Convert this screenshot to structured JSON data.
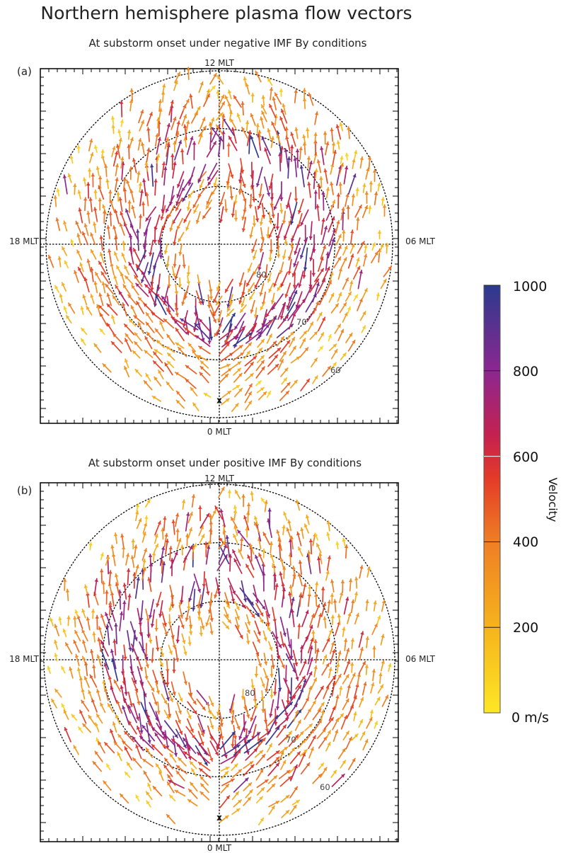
{
  "title": "Northern hemisphere plasma flow vectors",
  "colors": {
    "scale": [
      "#fde725",
      "#f8b61e",
      "#f39224",
      "#ea5a25",
      "#e22b2b",
      "#b3206a",
      "#7b2a9a",
      "#2c3d8f"
    ],
    "frame": "#000000",
    "grid": "#000000"
  },
  "chart_data": [
    {
      "type": "polar-vector",
      "panel_label": "(a)",
      "title": "At substorm onset under negative IMF By conditions",
      "mlt_labels": {
        "top": "12 MLT",
        "left": "18 MLT",
        "right": "06 MLT",
        "bottom": "0 MLT"
      },
      "latitude_rings": [
        80,
        70,
        60
      ],
      "latitude_labels": [
        "80",
        "70",
        "60"
      ],
      "ring_type": "dotted",
      "grid": true,
      "flow_pattern": "two-cell convection",
      "lat_range": [
        60,
        90
      ],
      "onset_marker": "x",
      "onset_location": {
        "mlt": 0,
        "lat": 63
      },
      "seed": 7,
      "imf_by": -1
    },
    {
      "type": "polar-vector",
      "panel_label": "(b)",
      "title": "At substorm onset under positive IMF By conditions",
      "mlt_labels": {
        "top": "12 MLT",
        "left": "18 MLT",
        "right": "06 MLT",
        "bottom": "0 MLT"
      },
      "latitude_rings": [
        80,
        70,
        60
      ],
      "latitude_labels": [
        "80",
        "70",
        "60"
      ],
      "ring_type": "dotted",
      "grid": true,
      "flow_pattern": "two-cell convection",
      "lat_range": [
        60,
        90
      ],
      "onset_marker": "x",
      "onset_location": {
        "mlt": 0,
        "lat": 63
      },
      "seed": 19,
      "imf_by": 1
    }
  ],
  "colorbar": {
    "title": "Velocity",
    "unit_label": "0 m/s",
    "ticks": [
      "1000",
      "800",
      "600",
      "400",
      "200"
    ],
    "tick_values": [
      1000,
      800,
      600,
      400,
      200
    ],
    "min": 0,
    "max": 1000
  }
}
